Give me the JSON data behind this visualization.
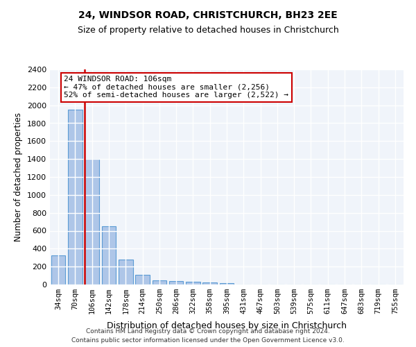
{
  "title1": "24, WINDSOR ROAD, CHRISTCHURCH, BH23 2EE",
  "title2": "Size of property relative to detached houses in Christchurch",
  "xlabel": "Distribution of detached houses by size in Christchurch",
  "ylabel": "Number of detached properties",
  "categories": [
    "34sqm",
    "70sqm",
    "106sqm",
    "142sqm",
    "178sqm",
    "214sqm",
    "250sqm",
    "286sqm",
    "322sqm",
    "358sqm",
    "395sqm",
    "431sqm",
    "467sqm",
    "503sqm",
    "539sqm",
    "575sqm",
    "611sqm",
    "647sqm",
    "683sqm",
    "719sqm",
    "755sqm"
  ],
  "values": [
    325,
    1950,
    1400,
    650,
    275,
    105,
    50,
    40,
    30,
    22,
    15,
    0,
    0,
    0,
    0,
    0,
    0,
    0,
    0,
    0,
    0
  ],
  "bar_color": "#aec6e8",
  "bar_edge_color": "#5b9bd5",
  "highlight_index": 2,
  "highlight_line_color": "#cc0000",
  "ylim": [
    0,
    2400
  ],
  "yticks": [
    0,
    200,
    400,
    600,
    800,
    1000,
    1200,
    1400,
    1600,
    1800,
    2000,
    2200,
    2400
  ],
  "annotation_text": "24 WINDSOR ROAD: 106sqm\n← 47% of detached houses are smaller (2,256)\n52% of semi-detached houses are larger (2,522) →",
  "annotation_box_color": "#ffffff",
  "annotation_box_edge": "#cc0000",
  "bg_color": "#f0f4fa",
  "grid_color": "#ffffff",
  "footer1": "Contains HM Land Registry data © Crown copyright and database right 2024.",
  "footer2": "Contains public sector information licensed under the Open Government Licence v3.0."
}
